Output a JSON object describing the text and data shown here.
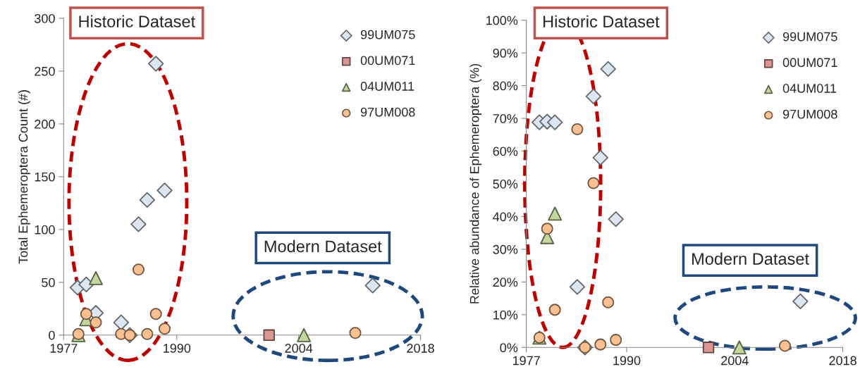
{
  "chart_data": [
    {
      "type": "scatter",
      "ylabel": "Total Ephemeroptera Count (#)",
      "annotations": [
        "Historic Dataset",
        "Modern Dataset"
      ],
      "xlim": [
        1977,
        2018
      ],
      "xticks": [
        1977,
        1990,
        2004,
        2018
      ],
      "ylim": [
        0,
        300
      ],
      "yticks": [
        0,
        50,
        100,
        150,
        200,
        250,
        300
      ],
      "grid": false,
      "legend": "top right",
      "series": [
        {
          "name": "99UM075",
          "color": "#dce6f2",
          "marker": "diamond",
          "x": [
            1978.6,
            1979.6,
            1980.7,
            1983.6,
            1984.6,
            1985.6,
            1986.6,
            1987.6,
            1988.6,
            2012.5
          ],
          "values": [
            45,
            48,
            21,
            12,
            0,
            105,
            128,
            257,
            137,
            47
          ]
        },
        {
          "name": "00UM071",
          "color": "#d99694",
          "marker": "square",
          "x": [
            2000.6
          ],
          "values": [
            0
          ]
        },
        {
          "name": "04UM011",
          "color": "#c3d69b",
          "marker": "triangle",
          "x": [
            1978.7,
            1979.6,
            1980.7,
            2004.6
          ],
          "values": [
            0,
            15,
            54,
            0
          ]
        },
        {
          "name": "97UM008",
          "color": "#fac090",
          "marker": "circle",
          "x": [
            1978.7,
            1979.6,
            1980.7,
            1983.6,
            1984.6,
            1985.6,
            1986.6,
            1987.6,
            1988.6,
            2010.5
          ],
          "values": [
            1,
            20,
            12,
            1,
            0,
            62,
            1,
            20,
            6,
            2
          ]
        }
      ]
    },
    {
      "type": "scatter",
      "ylabel": "Relative abundance of Ephemeroptera (%)",
      "annotations": [
        "Historic Dataset",
        "Modern Dataset"
      ],
      "xlim": [
        1977,
        2018
      ],
      "xticks": [
        1977,
        1990,
        2004,
        2018
      ],
      "ylim": [
        0,
        100
      ],
      "yticks": [
        {
          "value": 0,
          "label": "0%"
        },
        {
          "value": 10,
          "label": "10%"
        },
        {
          "value": 20,
          "label": "20%"
        },
        {
          "value": 30,
          "label": "30%"
        },
        {
          "value": 40,
          "label": "40%"
        },
        {
          "value": 50,
          "label": "50%"
        },
        {
          "value": 60,
          "label": "60%"
        },
        {
          "value": 70,
          "label": "70%"
        },
        {
          "value": 80,
          "label": "80%"
        },
        {
          "value": 90,
          "label": "90%"
        },
        {
          "value": 100,
          "label": "100%"
        }
      ],
      "grid": false,
      "legend": "top right",
      "series": [
        {
          "name": "99UM075",
          "color": "#dce6f2",
          "marker": "diamond",
          "x": [
            1978.7,
            1979.7,
            1980.7,
            1983.6,
            1984.6,
            1985.7,
            1986.6,
            1987.6,
            1988.6,
            2012.5
          ],
          "values": [
            68.8,
            69,
            68.8,
            18.5,
            0,
            76.7,
            58,
            85.1,
            39.2,
            14.1
          ]
        },
        {
          "name": "00UM071",
          "color": "#d99694",
          "marker": "square",
          "x": [
            2000.6
          ],
          "values": [
            0
          ]
        },
        {
          "name": "04UM011",
          "color": "#c3d69b",
          "marker": "triangle",
          "x": [
            1978.7,
            1979.7,
            1980.7,
            2004.6
          ],
          "values": [
            3,
            33.7,
            40.9,
            0
          ]
        },
        {
          "name": "97UM008",
          "color": "#fac090",
          "marker": "circle",
          "x": [
            1978.7,
            1979.7,
            1980.7,
            1983.6,
            1984.6,
            1985.7,
            1986.6,
            1987.6,
            1988.6,
            2010.5
          ],
          "values": [
            3,
            36.3,
            11.5,
            66.7,
            0,
            50.2,
            0.9,
            13.8,
            2.3,
            0.5
          ]
        }
      ]
    }
  ]
}
